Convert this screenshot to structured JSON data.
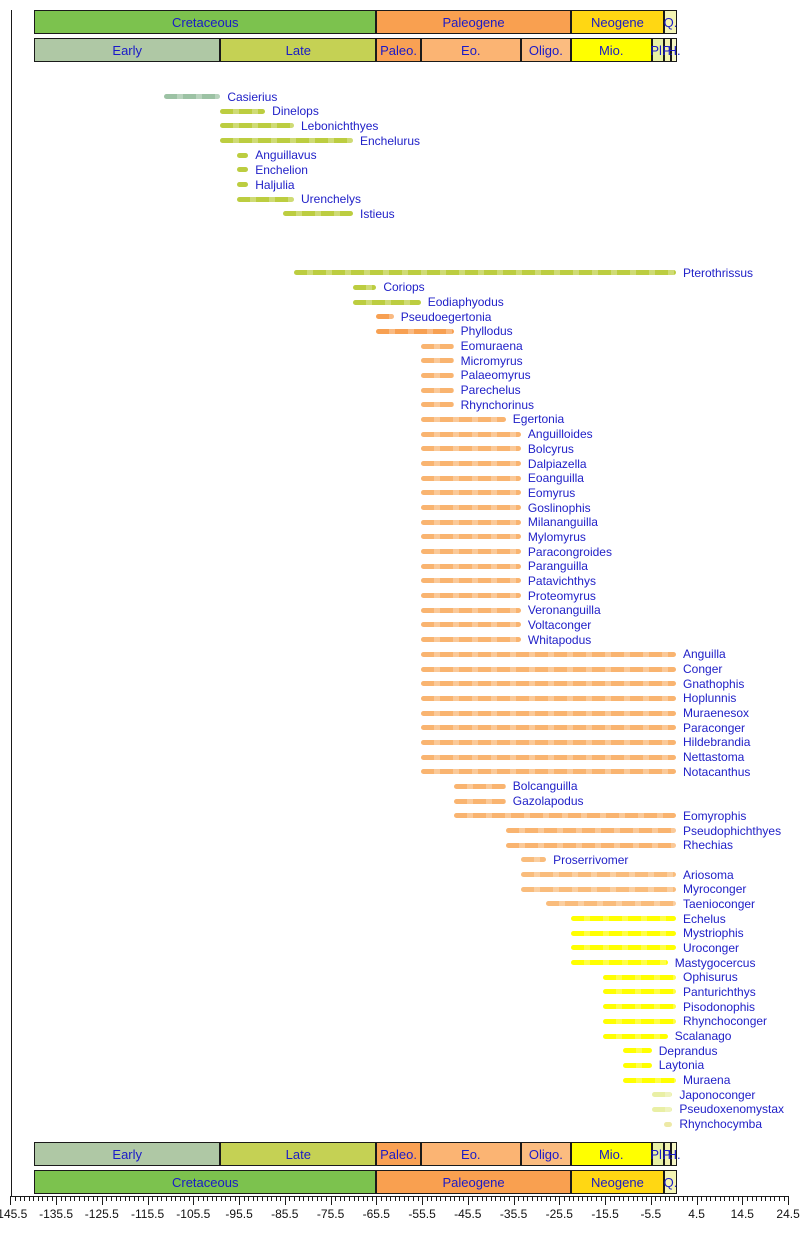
{
  "chart_data": {
    "type": "bar",
    "subtype": "horizontal-range-timeline",
    "title": "",
    "xlabel": "",
    "ylabel": "",
    "description": "Stratigraphic range chart of eel and eel-like fish genera against the geologic timescale",
    "axis": {
      "min": -145.5,
      "max": 24.5,
      "major_tick_step": 10,
      "minor_tick_step": 1,
      "tick_labels": [
        "-145.5",
        "-135.5",
        "-125.5",
        "-115.5",
        "-105.5",
        "-95.5",
        "-85.5",
        "-75.5",
        "-65.5",
        "-55.5",
        "-45.5",
        "-35.5",
        "-25.5",
        "-15.5",
        "-5.5",
        "4.5",
        "14.5",
        "24.5"
      ]
    },
    "colors": {
      "label_text": "#2121c8",
      "axis_text": "#111111",
      "bar_early_cretaceous": "#9cc2a4",
      "bar_late_cretaceous": "#bccd40",
      "bar_paleocene": "#f7a052",
      "bar_eocene": "#f9b470",
      "bar_oligocene": "#f9bc7c",
      "bar_miocene": "#ffff00",
      "bar_pliocene": "#e9efa5",
      "bar_pleistocene": "#ede9a6"
    },
    "timescale": {
      "shown_start": -140.3,
      "shown_end": 0.2,
      "periods": [
        {
          "label": "Cretaceous",
          "from": -140.3,
          "to": -65.5,
          "color": "#7cc24e"
        },
        {
          "label": "Paleogene",
          "from": -65.5,
          "to": -23.0,
          "color": "#f9a050"
        },
        {
          "label": "Neogene",
          "from": -23.0,
          "to": -2.6,
          "color": "#ffd713"
        },
        {
          "label": "Q.",
          "from": -2.6,
          "to": 0.2,
          "color": "#f4f4b5"
        }
      ],
      "epochs": [
        {
          "label": "Early",
          "from": -140.3,
          "to": -99.6,
          "color": "#afc8a5"
        },
        {
          "label": "Late",
          "from": -99.6,
          "to": -65.5,
          "color": "#c5d154"
        },
        {
          "label": "Paleo.",
          "from": -65.5,
          "to": -55.8,
          "color": "#f9a154"
        },
        {
          "label": "Eo.",
          "from": -55.8,
          "to": -33.9,
          "color": "#fbb473"
        },
        {
          "label": "Oligo.",
          "from": -33.9,
          "to": -23.0,
          "color": "#fbbc80"
        },
        {
          "label": "Mio.",
          "from": -23.0,
          "to": -5.3,
          "color": "#ffff00"
        },
        {
          "label": "Pl.",
          "from": -5.3,
          "to": -2.6,
          "color": "#e8f0a3"
        },
        {
          "label": "P.",
          "from": -2.6,
          "to": -1.0,
          "color": "#f2f2b0"
        },
        {
          "label": "H.",
          "from": -1.0,
          "to": 0.2,
          "color": "#f6f6c4"
        }
      ]
    },
    "taxa": [
      {
        "name": "Casierius",
        "from": -112,
        "to": -99.6,
        "color": "bar_early_cretaceous"
      },
      {
        "name": "Dinelops",
        "from": -99.6,
        "to": -89.8,
        "color": "bar_late_cretaceous"
      },
      {
        "name": "Lebonichthyes",
        "from": -99.6,
        "to": -83.5,
        "color": "bar_late_cretaceous"
      },
      {
        "name": "Enchelurus",
        "from": -99.6,
        "to": -70.6,
        "color": "bar_late_cretaceous"
      },
      {
        "name": "Anguillavus",
        "from": -96,
        "to": -93.5,
        "color": "bar_late_cretaceous"
      },
      {
        "name": "Enchelion",
        "from": -96,
        "to": -93.5,
        "color": "bar_late_cretaceous"
      },
      {
        "name": "Haljulia",
        "from": -96,
        "to": -93.5,
        "color": "bar_late_cretaceous"
      },
      {
        "name": "Urenchelys",
        "from": -96,
        "to": -83.5,
        "color": "bar_late_cretaceous"
      },
      {
        "name": "Istieus",
        "from": -86,
        "to": -70.6,
        "color": "bar_late_cretaceous"
      },
      {
        "name": "Pterothrissus",
        "from": -83.5,
        "to": 0,
        "color": "bar_late_cretaceous",
        "gap_before_rows": 3
      },
      {
        "name": "Coriops",
        "from": -70.6,
        "to": -65.5,
        "color": "bar_late_cretaceous"
      },
      {
        "name": "Eodiaphyodus",
        "from": -70.6,
        "to": -55.8,
        "color": "bar_late_cretaceous"
      },
      {
        "name": "Pseudoegertonia",
        "from": -65.5,
        "to": -61.7,
        "color": "bar_paleocene"
      },
      {
        "name": "Phyllodus",
        "from": -65.5,
        "to": -48.6,
        "color": "bar_paleocene"
      },
      {
        "name": "Eomuraena",
        "from": -55.8,
        "to": -48.6,
        "color": "bar_eocene"
      },
      {
        "name": "Micromyrus",
        "from": -55.8,
        "to": -48.6,
        "color": "bar_eocene"
      },
      {
        "name": "Palaeomyrus",
        "from": -55.8,
        "to": -48.6,
        "color": "bar_eocene"
      },
      {
        "name": "Parechelus",
        "from": -55.8,
        "to": -48.6,
        "color": "bar_eocene"
      },
      {
        "name": "Rhynchorinus",
        "from": -55.8,
        "to": -48.6,
        "color": "bar_eocene"
      },
      {
        "name": "Egertonia",
        "from": -55.8,
        "to": -37.2,
        "color": "bar_eocene"
      },
      {
        "name": "Anguilloides",
        "from": -55.8,
        "to": -33.9,
        "color": "bar_eocene"
      },
      {
        "name": "Bolcyrus",
        "from": -55.8,
        "to": -33.9,
        "color": "bar_eocene"
      },
      {
        "name": "Dalpiazella",
        "from": -55.8,
        "to": -33.9,
        "color": "bar_eocene"
      },
      {
        "name": "Eoanguilla",
        "from": -55.8,
        "to": -33.9,
        "color": "bar_eocene"
      },
      {
        "name": "Eomyrus",
        "from": -55.8,
        "to": -33.9,
        "color": "bar_eocene"
      },
      {
        "name": "Goslinophis",
        "from": -55.8,
        "to": -33.9,
        "color": "bar_eocene"
      },
      {
        "name": "Milananguilla",
        "from": -55.8,
        "to": -33.9,
        "color": "bar_eocene"
      },
      {
        "name": "Mylomyrus",
        "from": -55.8,
        "to": -33.9,
        "color": "bar_eocene"
      },
      {
        "name": "Paracongroides",
        "from": -55.8,
        "to": -33.9,
        "color": "bar_eocene"
      },
      {
        "name": "Paranguilla",
        "from": -55.8,
        "to": -33.9,
        "color": "bar_eocene"
      },
      {
        "name": "Patavichthys",
        "from": -55.8,
        "to": -33.9,
        "color": "bar_eocene"
      },
      {
        "name": "Proteomyrus",
        "from": -55.8,
        "to": -33.9,
        "color": "bar_eocene"
      },
      {
        "name": "Veronanguilla",
        "from": -55.8,
        "to": -33.9,
        "color": "bar_eocene"
      },
      {
        "name": "Voltaconger",
        "from": -55.8,
        "to": -33.9,
        "color": "bar_eocene"
      },
      {
        "name": "Whitapodus",
        "from": -55.8,
        "to": -33.9,
        "color": "bar_eocene"
      },
      {
        "name": "Anguilla",
        "from": -55.8,
        "to": 0,
        "color": "bar_eocene"
      },
      {
        "name": "Conger",
        "from": -55.8,
        "to": 0,
        "color": "bar_eocene"
      },
      {
        "name": "Gnathophis",
        "from": -55.8,
        "to": 0,
        "color": "bar_eocene"
      },
      {
        "name": "Hoplunnis",
        "from": -55.8,
        "to": 0,
        "color": "bar_eocene"
      },
      {
        "name": "Muraenesox",
        "from": -55.8,
        "to": 0,
        "color": "bar_eocene"
      },
      {
        "name": "Paraconger",
        "from": -55.8,
        "to": 0,
        "color": "bar_eocene"
      },
      {
        "name": "Hildebrandia",
        "from": -55.8,
        "to": 0,
        "color": "bar_eocene"
      },
      {
        "name": "Nettastoma",
        "from": -55.8,
        "to": 0,
        "color": "bar_eocene"
      },
      {
        "name": "Notacanthus",
        "from": -55.8,
        "to": 0,
        "color": "bar_eocene"
      },
      {
        "name": "Bolcanguilla",
        "from": -48.6,
        "to": -37.2,
        "color": "bar_eocene"
      },
      {
        "name": "Gazolapodus",
        "from": -48.6,
        "to": -37.2,
        "color": "bar_eocene"
      },
      {
        "name": "Eomyrophis",
        "from": -48.6,
        "to": 0,
        "color": "bar_eocene"
      },
      {
        "name": "Pseudophichthyes",
        "from": -37.2,
        "to": 0,
        "color": "bar_eocene"
      },
      {
        "name": "Rhechias",
        "from": -37.2,
        "to": 0,
        "color": "bar_eocene"
      },
      {
        "name": "Proserrivomer",
        "from": -33.9,
        "to": -28.4,
        "color": "bar_oligocene"
      },
      {
        "name": "Ariosoma",
        "from": -33.9,
        "to": 0,
        "color": "bar_oligocene"
      },
      {
        "name": "Myroconger",
        "from": -33.9,
        "to": 0,
        "color": "bar_oligocene"
      },
      {
        "name": "Taenioconger",
        "from": -28.4,
        "to": 0,
        "color": "bar_oligocene"
      },
      {
        "name": "Echelus",
        "from": -23,
        "to": 0,
        "color": "bar_miocene"
      },
      {
        "name": "Mystriophis",
        "from": -23,
        "to": 0,
        "color": "bar_miocene"
      },
      {
        "name": "Uroconger",
        "from": -23,
        "to": 0,
        "color": "bar_miocene"
      },
      {
        "name": "Mastygocercus",
        "from": -23,
        "to": -1.8,
        "color": "bar_miocene"
      },
      {
        "name": "Ophisurus",
        "from": -16,
        "to": 0,
        "color": "bar_miocene"
      },
      {
        "name": "Panturichthys",
        "from": -16,
        "to": 0,
        "color": "bar_miocene"
      },
      {
        "name": "Pisodonophis",
        "from": -16,
        "to": 0,
        "color": "bar_miocene"
      },
      {
        "name": "Rhynchoconger",
        "from": -16,
        "to": 0,
        "color": "bar_miocene"
      },
      {
        "name": "Scalanago",
        "from": -16,
        "to": -1.8,
        "color": "bar_miocene"
      },
      {
        "name": "Deprandus",
        "from": -11.6,
        "to": -5.3,
        "color": "bar_miocene"
      },
      {
        "name": "Laytonia",
        "from": -11.6,
        "to": -5.3,
        "color": "bar_miocene"
      },
      {
        "name": "Muraena",
        "from": -11.6,
        "to": 0,
        "color": "bar_miocene"
      },
      {
        "name": "Japonoconger",
        "from": -5.3,
        "to": -0.8,
        "color": "bar_pliocene"
      },
      {
        "name": "Pseudoxenomystax",
        "from": -5.3,
        "to": -0.8,
        "color": "bar_pliocene"
      },
      {
        "name": "Rhynchocymba",
        "from": -2.6,
        "to": -0.8,
        "color": "bar_pleistocene"
      }
    ]
  }
}
